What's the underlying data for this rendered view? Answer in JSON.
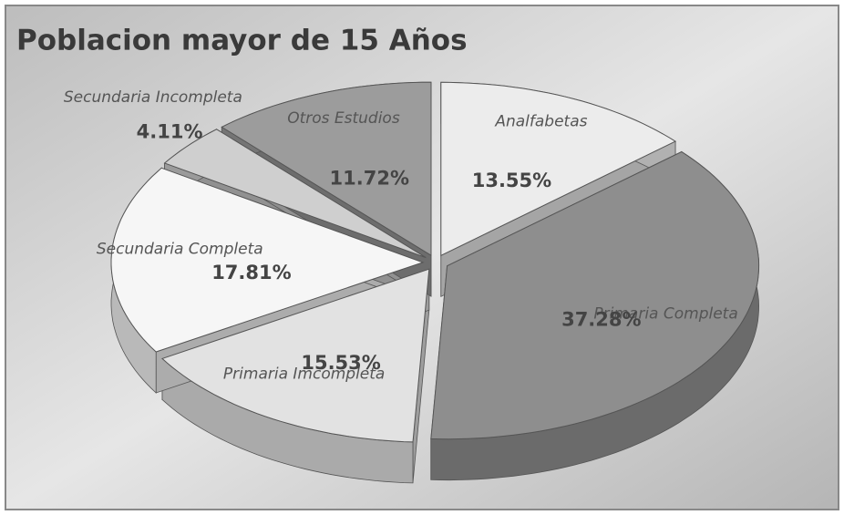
{
  "chart_data": {
    "type": "pie",
    "title": "Poblacion mayor de 15 Años",
    "categories": [
      "Analfabetas",
      "Primaria Completa",
      "Primaria Imcompleta",
      "Secundaria Completa",
      "Secundaria Incompleta",
      "Otros Estudios"
    ],
    "values": [
      13.55,
      37.28,
      15.53,
      17.81,
      4.11,
      11.72
    ],
    "value_labels": [
      "13.55%",
      "37.28%",
      "15.53%",
      "17.81%",
      "4.11%",
      "11.72%"
    ],
    "colors": [
      "#ececec",
      "#8e8e8e",
      "#e2e2e2",
      "#f6f6f6",
      "#cfcfcf",
      "#9c9c9c"
    ]
  }
}
